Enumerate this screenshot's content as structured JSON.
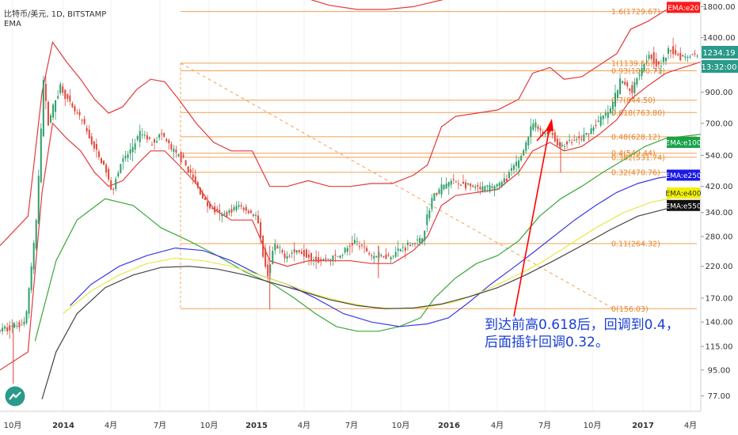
{
  "header": {
    "title": "比特币/美元, 1D, BITSTAMP",
    "indicator": "EMA"
  },
  "annotation": "到达前高0.618后，回调到0.4，后面插针回调0.32。",
  "price_tags": {
    "last_price": "1234.19",
    "countdown": "13:32:00"
  },
  "chart_data": {
    "type": "line",
    "log_scale": true,
    "ylim": [
      68,
      1900
    ],
    "x_ticks": [
      "10月",
      "2014",
      "4月",
      "7月",
      "10月",
      "2015",
      "4月",
      "7月",
      "10月",
      "2016",
      "4月",
      "7月",
      "10月",
      "2017",
      "4月"
    ],
    "y_ticks": [
      77,
      95,
      115,
      140,
      170,
      220,
      280,
      340,
      420,
      540,
      700,
      900,
      1400,
      1800
    ],
    "fib_levels": [
      {
        "label": "1.6(1729.67)",
        "value": 1729.67
      },
      {
        "label": "1(1139.56)",
        "value": 1139.56
      },
      {
        "label": "0.93(1070.71)",
        "value": 1070.71
      },
      {
        "label": "0.7(844.50)",
        "value": 844.5
      },
      {
        "label": "0.618(763.80)",
        "value": 763.8
      },
      {
        "label": "0.48(628.12)",
        "value": 628.12
      },
      {
        "label": "0.4(549.44)",
        "value": 549.44
      },
      {
        "label": "0.382(531.74)",
        "value": 531.74
      },
      {
        "label": "0.32(470.76)",
        "value": 470.76
      },
      {
        "label": "0.11(264.32)",
        "value": 264.32
      },
      {
        "label": "0(156.03)",
        "value": 156.03
      }
    ],
    "ema_labels": [
      {
        "name": "EMA:e20",
        "value": 1790,
        "bg": "#ff1a1a",
        "fg": "#ffffff"
      },
      {
        "name": "EMA:e100",
        "value": 600,
        "bg": "#16a34a",
        "fg": "#ffffff"
      },
      {
        "name": "EMA:e250",
        "value": 460,
        "bg": "#1a1ae6",
        "fg": "#ffffff"
      },
      {
        "name": "EMA:e400",
        "value": 398,
        "bg": "#f0f000",
        "fg": "#333333"
      },
      {
        "name": "EMA:e550",
        "value": 360,
        "bg": "#111111",
        "fg": "#ffffff"
      }
    ],
    "price_path": [
      [
        0.0,
        130
      ],
      [
        0.04,
        140
      ],
      [
        0.055,
        300
      ],
      [
        0.066,
        1000
      ],
      [
        0.072,
        700
      ],
      [
        0.08,
        800
      ],
      [
        0.09,
        950
      ],
      [
        0.105,
        800
      ],
      [
        0.12,
        720
      ],
      [
        0.14,
        560
      ],
      [
        0.155,
        480
      ],
      [
        0.163,
        400
      ],
      [
        0.175,
        500
      ],
      [
        0.19,
        560
      ],
      [
        0.205,
        650
      ],
      [
        0.22,
        600
      ],
      [
        0.235,
        640
      ],
      [
        0.25,
        560
      ],
      [
        0.265,
        520
      ],
      [
        0.285,
        420
      ],
      [
        0.3,
        360
      ],
      [
        0.32,
        330
      ],
      [
        0.345,
        360
      ],
      [
        0.37,
        330
      ],
      [
        0.385,
        200
      ],
      [
        0.395,
        260
      ],
      [
        0.41,
        240
      ],
      [
        0.43,
        250
      ],
      [
        0.46,
        230
      ],
      [
        0.49,
        240
      ],
      [
        0.51,
        270
      ],
      [
        0.535,
        240
      ],
      [
        0.56,
        240
      ],
      [
        0.59,
        265
      ],
      [
        0.605,
        270
      ],
      [
        0.62,
        380
      ],
      [
        0.635,
        420
      ],
      [
        0.65,
        440
      ],
      [
        0.67,
        420
      ],
      [
        0.69,
        410
      ],
      [
        0.72,
        430
      ],
      [
        0.745,
        520
      ],
      [
        0.765,
        700
      ],
      [
        0.778,
        640
      ],
      [
        0.79,
        660
      ],
      [
        0.8,
        580
      ],
      [
        0.815,
        600
      ],
      [
        0.835,
        620
      ],
      [
        0.855,
        700
      ],
      [
        0.875,
        780
      ],
      [
        0.89,
        1000
      ],
      [
        0.905,
        900
      ],
      [
        0.915,
        1050
      ],
      [
        0.93,
        1230
      ],
      [
        0.945,
        1100
      ],
      [
        0.96,
        1280
      ],
      [
        0.975,
        1200
      ],
      [
        1.0,
        1234
      ]
    ],
    "ema_series": [
      {
        "name": "EMA:e20 upper band",
        "color": "#e23a3a",
        "values": [
          [
            0.0,
            260
          ],
          [
            0.04,
            330
          ],
          [
            0.06,
            900
          ],
          [
            0.075,
            1350
          ],
          [
            0.095,
            1150
          ],
          [
            0.115,
            1000
          ],
          [
            0.135,
            850
          ],
          [
            0.155,
            760
          ],
          [
            0.175,
            800
          ],
          [
            0.195,
            920
          ],
          [
            0.215,
            1000
          ],
          [
            0.235,
            980
          ],
          [
            0.255,
            850
          ],
          [
            0.28,
            700
          ],
          [
            0.305,
            600
          ],
          [
            0.33,
            560
          ],
          [
            0.36,
            560
          ],
          [
            0.385,
            420
          ],
          [
            0.41,
            420
          ],
          [
            0.44,
            440
          ],
          [
            0.47,
            420
          ],
          [
            0.5,
            420
          ],
          [
            0.53,
            430
          ],
          [
            0.56,
            430
          ],
          [
            0.59,
            460
          ],
          [
            0.61,
            500
          ],
          [
            0.63,
            680
          ],
          [
            0.65,
            740
          ],
          [
            0.68,
            760
          ],
          [
            0.71,
            780
          ],
          [
            0.74,
            850
          ],
          [
            0.76,
            1050
          ],
          [
            0.785,
            1100
          ],
          [
            0.805,
            1000
          ],
          [
            0.83,
            1020
          ],
          [
            0.855,
            1120
          ],
          [
            0.88,
            1230
          ],
          [
            0.9,
            1500
          ],
          [
            0.925,
            1600
          ],
          [
            0.95,
            1750
          ],
          [
            0.975,
            1800
          ],
          [
            1.0,
            1850
          ]
        ]
      },
      {
        "name": "EMA:e20 lower band",
        "color": "#e23a3a",
        "values": [
          [
            0.0,
            95
          ],
          [
            0.04,
            110
          ],
          [
            0.06,
            400
          ],
          [
            0.075,
            700
          ],
          [
            0.095,
            620
          ],
          [
            0.115,
            560
          ],
          [
            0.135,
            470
          ],
          [
            0.155,
            420
          ],
          [
            0.175,
            440
          ],
          [
            0.195,
            500
          ],
          [
            0.215,
            560
          ],
          [
            0.235,
            560
          ],
          [
            0.255,
            500
          ],
          [
            0.28,
            430
          ],
          [
            0.305,
            350
          ],
          [
            0.33,
            320
          ],
          [
            0.36,
            320
          ],
          [
            0.385,
            230
          ],
          [
            0.41,
            220
          ],
          [
            0.44,
            230
          ],
          [
            0.47,
            230
          ],
          [
            0.5,
            230
          ],
          [
            0.53,
            225
          ],
          [
            0.56,
            225
          ],
          [
            0.59,
            250
          ],
          [
            0.61,
            280
          ],
          [
            0.63,
            360
          ],
          [
            0.65,
            390
          ],
          [
            0.68,
            400
          ],
          [
            0.71,
            410
          ],
          [
            0.74,
            470
          ],
          [
            0.76,
            560
          ],
          [
            0.785,
            600
          ],
          [
            0.805,
            560
          ],
          [
            0.83,
            580
          ],
          [
            0.855,
            640
          ],
          [
            0.88,
            720
          ],
          [
            0.9,
            850
          ],
          [
            0.925,
            950
          ],
          [
            0.95,
            1050
          ],
          [
            0.975,
            1100
          ],
          [
            1.0,
            1150
          ]
        ]
      },
      {
        "name": "EMA:e100",
        "color": "#3aa83a",
        "values": [
          [
            0.05,
            120
          ],
          [
            0.08,
            230
          ],
          [
            0.11,
            320
          ],
          [
            0.15,
            380
          ],
          [
            0.19,
            360
          ],
          [
            0.23,
            300
          ],
          [
            0.27,
            270
          ],
          [
            0.31,
            240
          ],
          [
            0.35,
            210
          ],
          [
            0.39,
            190
          ],
          [
            0.42,
            170
          ],
          [
            0.45,
            150
          ],
          [
            0.48,
            135
          ],
          [
            0.51,
            130
          ],
          [
            0.54,
            130
          ],
          [
            0.57,
            135
          ],
          [
            0.6,
            145
          ],
          [
            0.62,
            170
          ],
          [
            0.65,
            200
          ],
          [
            0.68,
            225
          ],
          [
            0.71,
            240
          ],
          [
            0.74,
            270
          ],
          [
            0.77,
            330
          ],
          [
            0.8,
            380
          ],
          [
            0.83,
            420
          ],
          [
            0.86,
            470
          ],
          [
            0.89,
            520
          ],
          [
            0.92,
            580
          ],
          [
            0.95,
            620
          ],
          [
            1.0,
            640
          ]
        ]
      },
      {
        "name": "EMA:e250",
        "color": "#3a3ae6",
        "values": [
          [
            0.1,
            160
          ],
          [
            0.13,
            190
          ],
          [
            0.17,
            220
          ],
          [
            0.21,
            240
          ],
          [
            0.25,
            255
          ],
          [
            0.29,
            250
          ],
          [
            0.33,
            230
          ],
          [
            0.37,
            205
          ],
          [
            0.41,
            190
          ],
          [
            0.45,
            170
          ],
          [
            0.49,
            150
          ],
          [
            0.53,
            140
          ],
          [
            0.57,
            135
          ],
          [
            0.61,
            138
          ],
          [
            0.64,
            145
          ],
          [
            0.67,
            165
          ],
          [
            0.7,
            190
          ],
          [
            0.73,
            215
          ],
          [
            0.76,
            245
          ],
          [
            0.79,
            280
          ],
          [
            0.82,
            320
          ],
          [
            0.85,
            360
          ],
          [
            0.88,
            400
          ],
          [
            0.91,
            430
          ],
          [
            0.94,
            450
          ],
          [
            1.0,
            470
          ]
        ]
      },
      {
        "name": "EMA:e400",
        "color": "#e8e84a",
        "values": [
          [
            0.09,
            150
          ],
          [
            0.13,
            180
          ],
          [
            0.17,
            205
          ],
          [
            0.21,
            225
          ],
          [
            0.25,
            235
          ],
          [
            0.29,
            230
          ],
          [
            0.33,
            220
          ],
          [
            0.37,
            205
          ],
          [
            0.41,
            190
          ],
          [
            0.45,
            175
          ],
          [
            0.49,
            165
          ],
          [
            0.53,
            158
          ],
          [
            0.57,
            156
          ],
          [
            0.61,
            158
          ],
          [
            0.65,
            165
          ],
          [
            0.69,
            180
          ],
          [
            0.73,
            200
          ],
          [
            0.77,
            225
          ],
          [
            0.81,
            260
          ],
          [
            0.85,
            300
          ],
          [
            0.89,
            340
          ],
          [
            0.93,
            370
          ],
          [
            1.0,
            400
          ]
        ]
      },
      {
        "name": "EMA:e550",
        "color": "#444444",
        "values": [
          [
            0.06,
            75
          ],
          [
            0.08,
            110
          ],
          [
            0.11,
            150
          ],
          [
            0.15,
            185
          ],
          [
            0.19,
            205
          ],
          [
            0.23,
            218
          ],
          [
            0.27,
            220
          ],
          [
            0.31,
            215
          ],
          [
            0.35,
            205
          ],
          [
            0.39,
            192
          ],
          [
            0.43,
            180
          ],
          [
            0.47,
            168
          ],
          [
            0.51,
            160
          ],
          [
            0.55,
            156
          ],
          [
            0.59,
            157
          ],
          [
            0.63,
            162
          ],
          [
            0.67,
            172
          ],
          [
            0.71,
            185
          ],
          [
            0.75,
            205
          ],
          [
            0.79,
            230
          ],
          [
            0.83,
            260
          ],
          [
            0.87,
            295
          ],
          [
            0.91,
            330
          ],
          [
            0.95,
            350
          ],
          [
            1.0,
            365
          ]
        ]
      },
      {
        "name": "EMA:e20 upper envelope",
        "color": "#e23a3a",
        "values": [
          [
            0.43,
            1950
          ],
          [
            0.47,
            1820
          ],
          [
            0.51,
            1760
          ],
          [
            0.55,
            1760
          ],
          [
            0.59,
            1800
          ],
          [
            0.63,
            1900
          ],
          [
            0.66,
            1980
          ],
          [
            0.69,
            2050
          ],
          [
            0.72,
            2100
          ]
        ]
      }
    ]
  }
}
